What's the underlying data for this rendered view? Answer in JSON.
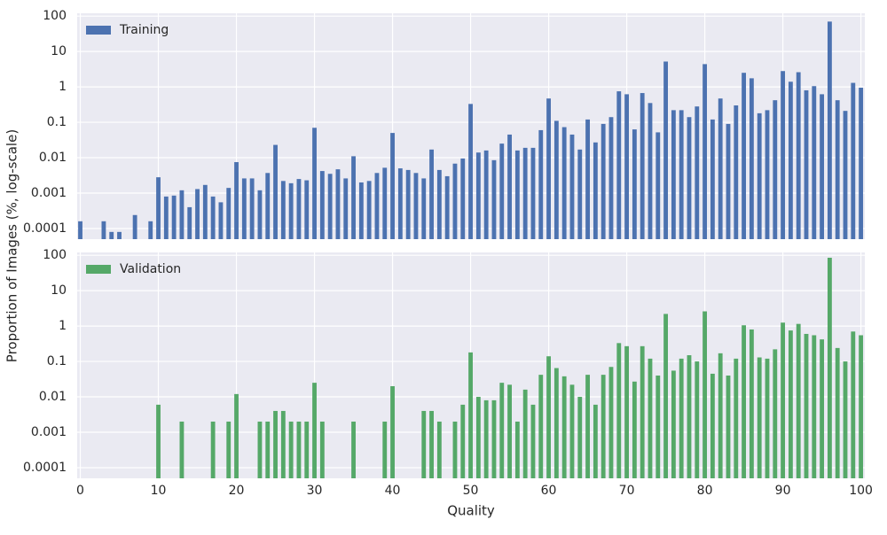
{
  "chart_data": [
    {
      "type": "bar",
      "ylabel": "Proportion of Images (%, log-scale)",
      "x": [
        0,
        1,
        2,
        3,
        4,
        5,
        6,
        7,
        8,
        9,
        10,
        11,
        12,
        13,
        14,
        15,
        16,
        17,
        18,
        19,
        20,
        21,
        22,
        23,
        24,
        25,
        26,
        27,
        28,
        29,
        30,
        31,
        32,
        33,
        34,
        35,
        36,
        37,
        38,
        39,
        40,
        41,
        42,
        43,
        44,
        45,
        46,
        47,
        48,
        49,
        50,
        51,
        52,
        53,
        54,
        55,
        56,
        57,
        58,
        59,
        60,
        61,
        62,
        63,
        64,
        65,
        66,
        67,
        68,
        69,
        70,
        71,
        72,
        73,
        74,
        75,
        76,
        77,
        78,
        79,
        80,
        81,
        82,
        83,
        84,
        85,
        86,
        87,
        88,
        89,
        90,
        91,
        92,
        93,
        94,
        95,
        96,
        97,
        98,
        99,
        100
      ],
      "series": [
        {
          "name": "Training",
          "color": "#4c72b0",
          "values": [
            0.00016,
            null,
            null,
            0.00016,
            8e-05,
            8e-05,
            null,
            0.00024,
            null,
            0.00016,
            0.0028,
            0.0008,
            0.00085,
            0.0012,
            0.0004,
            0.0013,
            0.0017,
            0.0008,
            0.00055,
            0.0014,
            0.0075,
            0.0026,
            0.0026,
            0.0012,
            0.0037,
            0.023,
            0.0022,
            0.0019,
            0.0025,
            0.0023,
            0.07,
            0.0042,
            0.0035,
            0.0047,
            0.0026,
            0.011,
            0.002,
            0.0022,
            0.0037,
            0.0052,
            0.05,
            0.005,
            0.0045,
            0.0037,
            0.0026,
            0.017,
            0.0045,
            0.003,
            0.0068,
            0.0095,
            0.33,
            0.014,
            0.016,
            0.0085,
            0.025,
            0.045,
            0.016,
            0.019,
            0.019,
            0.06,
            0.47,
            0.11,
            0.073,
            0.045,
            0.017,
            0.12,
            0.027,
            0.09,
            0.14,
            0.75,
            0.62,
            0.063,
            0.67,
            0.35,
            0.052,
            5.2,
            0.22,
            0.22,
            0.14,
            0.28,
            4.4,
            0.12,
            0.47,
            0.09,
            0.3,
            2.5,
            1.75,
            0.18,
            0.22,
            0.42,
            2.8,
            1.4,
            2.6,
            0.8,
            1.05,
            0.62,
            70,
            0.42,
            0.21,
            1.3,
            0.95
          ]
        }
      ],
      "xlim": [
        -0.4,
        100.5
      ],
      "xticks": [
        0,
        10,
        20,
        30,
        40,
        50,
        60,
        70,
        80,
        90,
        100
      ],
      "ylim": [
        5e-05,
        120
      ],
      "yticks": [
        0.0001,
        0.001,
        0.01,
        0.1,
        1,
        10,
        100
      ],
      "log_y": true,
      "grid": true,
      "legend": "upper left"
    },
    {
      "type": "bar",
      "xlabel": "Quality",
      "x": [
        0,
        1,
        2,
        3,
        4,
        5,
        6,
        7,
        8,
        9,
        10,
        11,
        12,
        13,
        14,
        15,
        16,
        17,
        18,
        19,
        20,
        21,
        22,
        23,
        24,
        25,
        26,
        27,
        28,
        29,
        30,
        31,
        32,
        33,
        34,
        35,
        36,
        37,
        38,
        39,
        40,
        41,
        42,
        43,
        44,
        45,
        46,
        47,
        48,
        49,
        50,
        51,
        52,
        53,
        54,
        55,
        56,
        57,
        58,
        59,
        60,
        61,
        62,
        63,
        64,
        65,
        66,
        67,
        68,
        69,
        70,
        71,
        72,
        73,
        74,
        75,
        76,
        77,
        78,
        79,
        80,
        81,
        82,
        83,
        84,
        85,
        86,
        87,
        88,
        89,
        90,
        91,
        92,
        93,
        94,
        95,
        96,
        97,
        98,
        99,
        100
      ],
      "series": [
        {
          "name": "Validation",
          "color": "#55a868",
          "values": [
            null,
            null,
            null,
            null,
            null,
            null,
            null,
            null,
            null,
            null,
            0.006,
            null,
            null,
            0.002,
            null,
            null,
            null,
            0.002,
            null,
            0.002,
            0.012,
            null,
            null,
            0.002,
            0.002,
            0.004,
            0.004,
            0.002,
            0.002,
            0.002,
            0.025,
            0.002,
            null,
            null,
            null,
            0.002,
            null,
            null,
            null,
            0.002,
            0.02,
            null,
            null,
            null,
            0.004,
            0.004,
            0.002,
            null,
            0.002,
            0.006,
            0.18,
            0.01,
            0.008,
            0.008,
            0.025,
            0.022,
            0.002,
            0.016,
            0.006,
            0.042,
            0.14,
            0.065,
            0.038,
            0.022,
            0.01,
            0.042,
            0.006,
            0.042,
            0.07,
            0.33,
            0.27,
            0.027,
            0.27,
            0.12,
            0.04,
            2.2,
            0.055,
            0.12,
            0.15,
            0.1,
            2.6,
            0.045,
            0.17,
            0.04,
            0.12,
            1.05,
            0.8,
            0.13,
            0.12,
            0.22,
            1.25,
            0.75,
            1.15,
            0.6,
            0.55,
            0.42,
            85,
            0.24,
            0.1,
            0.7,
            0.55
          ]
        }
      ],
      "xlim": [
        -0.4,
        100.5
      ],
      "xticks": [
        0,
        10,
        20,
        30,
        40,
        50,
        60,
        70,
        80,
        90,
        100
      ],
      "ylim": [
        5e-05,
        120
      ],
      "yticks": [
        0.0001,
        0.001,
        0.01,
        0.1,
        1,
        10,
        100
      ],
      "log_y": true,
      "grid": true,
      "legend": "upper left"
    }
  ]
}
